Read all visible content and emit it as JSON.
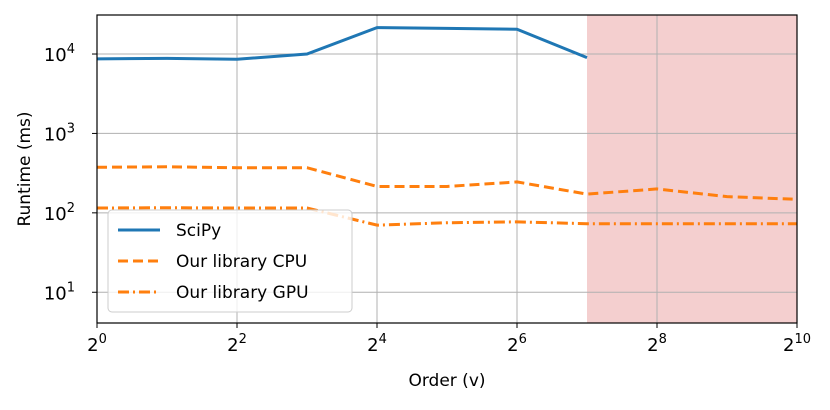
{
  "chart_data": {
    "type": "line",
    "xlabel": "Order (v)",
    "ylabel": "Runtime (ms)",
    "xscale": "log2",
    "yscale": "log10",
    "grid": true,
    "legend": "lower left",
    "x": [
      1,
      2,
      4,
      8,
      16,
      32,
      64,
      128,
      256,
      512,
      1024
    ],
    "series": [
      {
        "name": "SciPy",
        "color": "#1f77b4",
        "dash": "solid",
        "values": [
          8700,
          8800,
          8600,
          10000,
          21500,
          21000,
          20500,
          9000,
          null,
          null,
          null
        ]
      },
      {
        "name": "Our library CPU",
        "color": "#ff7f0e",
        "dash": "dashed",
        "values": [
          375,
          380,
          370,
          370,
          215,
          215,
          245,
          172,
          200,
          160,
          148
        ]
      },
      {
        "name": "Our library GPU",
        "color": "#ff7f0e",
        "dash": "dashdot",
        "values": [
          115,
          116,
          115,
          115,
          70,
          75,
          77,
          73,
          73,
          73,
          73
        ]
      }
    ],
    "shaded_xrange": [
      128,
      1024
    ],
    "shade_color": "#f4cfcf",
    "xlim": [
      1,
      1024
    ],
    "ylim": [
      4.1,
      31000
    ],
    "xticks": [
      {
        "value": 1,
        "label": "2",
        "exponent": "0"
      },
      {
        "value": 4,
        "label": "2",
        "exponent": "2"
      },
      {
        "value": 16,
        "label": "2",
        "exponent": "4"
      },
      {
        "value": 64,
        "label": "2",
        "exponent": "6"
      },
      {
        "value": 256,
        "label": "2",
        "exponent": "8"
      },
      {
        "value": 1024,
        "label": "2",
        "exponent": "10"
      }
    ],
    "yticks": [
      {
        "value": 10,
        "label": "10",
        "exponent": "1"
      },
      {
        "value": 100,
        "label": "10",
        "exponent": "2"
      },
      {
        "value": 1000,
        "label": "10",
        "exponent": "3"
      },
      {
        "value": 10000,
        "label": "10",
        "exponent": "4"
      }
    ]
  }
}
